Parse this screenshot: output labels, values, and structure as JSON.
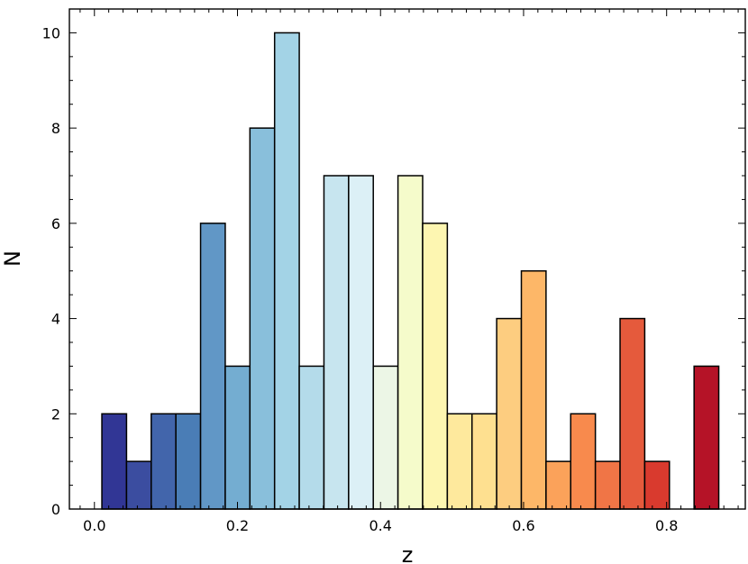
{
  "chart_data": {
    "type": "bar",
    "title": "",
    "xlabel": "z",
    "ylabel": "N",
    "xlim": [
      -0.035,
      0.91
    ],
    "ylim": [
      0,
      10.5
    ],
    "bin_width": 0.0345,
    "x_ticks": [
      0.0,
      0.2,
      0.4,
      0.6,
      0.8
    ],
    "x_tick_labels": [
      "0.0",
      "0.2",
      "0.4",
      "0.6",
      "0.8"
    ],
    "y_ticks": [
      0,
      2,
      4,
      6,
      8,
      10
    ],
    "y_tick_labels": [
      "0",
      "2",
      "4",
      "6",
      "8",
      "10"
    ],
    "grid": false,
    "colormap": "RdYlBu_r",
    "bins": [
      {
        "left": 0.0104,
        "value": 2,
        "color": "#313695"
      },
      {
        "left": 0.0449,
        "value": 1,
        "color": "#3b4da0"
      },
      {
        "left": 0.0794,
        "value": 2,
        "color": "#4265ab"
      },
      {
        "left": 0.1139,
        "value": 2,
        "color": "#4a7db6"
      },
      {
        "left": 0.1484,
        "value": 6,
        "color": "#6197c6"
      },
      {
        "left": 0.1829,
        "value": 3,
        "color": "#74add1"
      },
      {
        "left": 0.2174,
        "value": 8,
        "color": "#89bfdb"
      },
      {
        "left": 0.2519,
        "value": 10,
        "color": "#a3d3e6"
      },
      {
        "left": 0.2864,
        "value": 3,
        "color": "#b4dbea"
      },
      {
        "left": 0.3209,
        "value": 7,
        "color": "#c7e5ef"
      },
      {
        "left": 0.3554,
        "value": 7,
        "color": "#dcf0f6"
      },
      {
        "left": 0.3899,
        "value": 3,
        "color": "#ecf6e6"
      },
      {
        "left": 0.4244,
        "value": 7,
        "color": "#f5fbcb"
      },
      {
        "left": 0.4589,
        "value": 6,
        "color": "#fdf6b1"
      },
      {
        "left": 0.4934,
        "value": 2,
        "color": "#fee99d"
      },
      {
        "left": 0.5279,
        "value": 2,
        "color": "#fee090"
      },
      {
        "left": 0.5624,
        "value": 4,
        "color": "#fdcd80"
      },
      {
        "left": 0.5969,
        "value": 5,
        "color": "#fdb768"
      },
      {
        "left": 0.6314,
        "value": 1,
        "color": "#fba25a"
      },
      {
        "left": 0.6659,
        "value": 2,
        "color": "#f88a4d"
      },
      {
        "left": 0.7004,
        "value": 1,
        "color": "#f07546"
      },
      {
        "left": 0.7349,
        "value": 4,
        "color": "#e55a3c"
      },
      {
        "left": 0.7694,
        "value": 1,
        "color": "#d93a2e"
      },
      {
        "left": 0.8039,
        "value": 0,
        "color": "#c82428"
      },
      {
        "left": 0.8384,
        "value": 3,
        "color": "#b51327"
      }
    ]
  }
}
